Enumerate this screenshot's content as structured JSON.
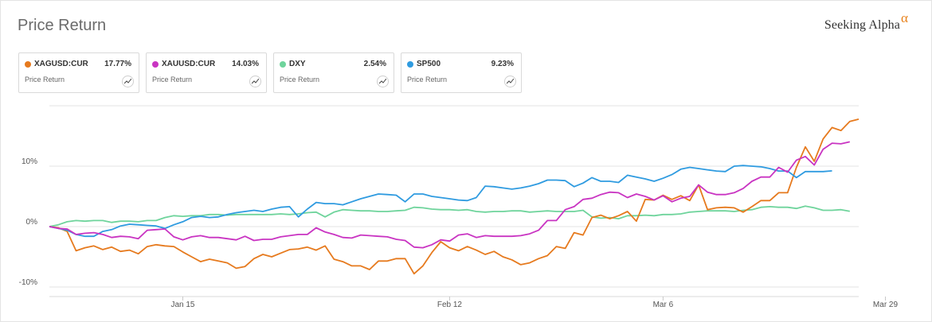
{
  "header": {
    "title": "Price Return"
  },
  "brand": {
    "name": "Seeking Alpha",
    "mark": "α"
  },
  "cards": [
    {
      "symbol": "XAGUSD:CUR",
      "value": "17.77%",
      "metric": "Price Return",
      "color": "#e67a1e",
      "icon": "sparkline-icon"
    },
    {
      "symbol": "XAUUSD:CUR",
      "value": "14.03%",
      "metric": "Price Return",
      "color": "#c934c2",
      "icon": "sparkline-icon"
    },
    {
      "symbol": "DXY",
      "value": "2.54%",
      "metric": "Price Return",
      "color": "#6fd49c",
      "icon": "sparkline-icon"
    },
    {
      "symbol": "SP500",
      "value": "9.23%",
      "metric": "Price Return",
      "color": "#2f9be0",
      "icon": "sparkline-icon"
    }
  ],
  "chart_data": {
    "type": "line",
    "x_tick_labels": [
      "Jan 15",
      "Feb 12",
      "Mar 6",
      "Mar 29"
    ],
    "x_tick_index": [
      15,
      45,
      69,
      94
    ],
    "y_tick_labels": [
      "10%",
      "0%",
      "-10%"
    ],
    "y_tick_values": [
      10,
      0,
      -10
    ],
    "ylim": [
      -11,
      20
    ],
    "grid": true,
    "series": [
      {
        "name": "XAGUSD:CUR",
        "color": "#e67a1e",
        "values": [
          0,
          -0.2,
          -0.8,
          -4,
          -3.5,
          -3.2,
          -3.8,
          -3.4,
          -4.1,
          -3.9,
          -4.5,
          -3.3,
          -3,
          -3.2,
          -3.3,
          -4.2,
          -5,
          -5.8,
          -5.4,
          -5.7,
          -6,
          -6.9,
          -6.6,
          -5.3,
          -4.6,
          -5,
          -4.4,
          -3.8,
          -3.7,
          -3.4,
          -3.9,
          -3.2,
          -5.4,
          -5.8,
          -6.5,
          -6.5,
          -7.1,
          -5.7,
          -5.7,
          -5.3,
          -5.3,
          -7.8,
          -6.5,
          -4.3,
          -2.5,
          -3.5,
          -4,
          -3.3,
          -3.9,
          -4.6,
          -4.1,
          -5,
          -5.5,
          -6.3,
          -6,
          -5.3,
          -4.8,
          -3.3,
          -3.6,
          -1,
          -1.4,
          1.5,
          1.9,
          1.3,
          1.8,
          2.5,
          0.9,
          4.5,
          4.4,
          5.2,
          4.5,
          5.1,
          4.3,
          6.9,
          2.8,
          3.1,
          3.2,
          3.1,
          2.4,
          3.3,
          4.3,
          4.3,
          5.6,
          5.6,
          9.8,
          13.2,
          10.8,
          14.5,
          16.4,
          15.9,
          17.4,
          17.77
        ]
      },
      {
        "name": "XAUUSD:CUR",
        "color": "#c934c2",
        "values": [
          0,
          -0.3,
          -0.4,
          -1.3,
          -1.1,
          -1,
          -1.3,
          -1.8,
          -1.6,
          -1.7,
          -2,
          -0.6,
          -0.5,
          -0.4,
          -1.7,
          -2.2,
          -1.7,
          -1.5,
          -1.8,
          -1.8,
          -2,
          -2.2,
          -1.6,
          -2.3,
          -2.1,
          -2.1,
          -1.7,
          -1.5,
          -1.3,
          -1.3,
          -0.2,
          -0.9,
          -1.3,
          -1.8,
          -1.9,
          -1.4,
          -1.5,
          -1.6,
          -1.7,
          -2.1,
          -2.3,
          -3.4,
          -3.5,
          -3,
          -2.2,
          -2.4,
          -1.4,
          -1.2,
          -1.8,
          -1.5,
          -1.6,
          -1.6,
          -1.6,
          -1.5,
          -1.2,
          -0.6,
          1,
          1,
          2.8,
          3.3,
          4.5,
          4.7,
          5.3,
          5.7,
          5.6,
          4.8,
          5.4,
          5,
          4.4,
          5.1,
          4.1,
          4.7,
          5,
          6.9,
          5.7,
          5.3,
          5.3,
          5.6,
          6.3,
          7.5,
          8.2,
          8.2,
          9.8,
          9,
          11,
          11.6,
          10.2,
          12.8,
          13.8,
          13.7,
          14.03
        ]
      },
      {
        "name": "DXY",
        "color": "#6fd49c",
        "values": [
          0,
          0.3,
          0.8,
          1,
          0.9,
          1,
          1,
          0.7,
          0.9,
          0.9,
          0.8,
          1,
          1,
          1.5,
          1.8,
          1.7,
          1.8,
          1.8,
          2,
          2,
          1.9,
          2,
          2,
          2,
          2,
          2,
          2.1,
          2,
          2.1,
          2.3,
          2.4,
          1.6,
          2.4,
          2.8,
          2.7,
          2.6,
          2.6,
          2.5,
          2.5,
          2.6,
          2.7,
          3.2,
          3.1,
          2.9,
          2.8,
          2.8,
          2.7,
          2.8,
          2.5,
          2.4,
          2.5,
          2.5,
          2.6,
          2.6,
          2.4,
          2.5,
          2.6,
          2.5,
          2.5,
          2.5,
          2.7,
          1.6,
          1.4,
          1.5,
          1.3,
          1.8,
          1.8,
          1.9,
          1.8,
          2,
          2,
          2.1,
          2.4,
          2.5,
          2.6,
          2.6,
          2.6,
          2.5,
          2.7,
          2.8,
          3.2,
          3.3,
          3.2,
          3.2,
          3,
          3.4,
          3.1,
          2.7,
          2.7,
          2.8,
          2.54
        ]
      },
      {
        "name": "SP500",
        "color": "#2f9be0",
        "values": [
          0,
          -0.3,
          -0.6,
          -1.3,
          -1.6,
          -1.6,
          -0.8,
          -0.5,
          0.1,
          0.4,
          0.3,
          0.2,
          0.1,
          -0.3,
          0.3,
          0.8,
          1.5,
          1.7,
          1.5,
          1.6,
          2,
          2.3,
          2.5,
          2.7,
          2.5,
          2.9,
          3.2,
          3.3,
          1.6,
          2.9,
          4,
          3.8,
          3.8,
          3.6,
          4.1,
          4.6,
          5,
          5.4,
          5.3,
          5.2,
          4.1,
          5.4,
          5.4,
          5,
          4.8,
          4.6,
          4.4,
          4.3,
          4.8,
          6.7,
          6.6,
          6.4,
          6.2,
          6.4,
          6.7,
          7.1,
          7.7,
          7.7,
          7.6,
          6.6,
          7.2,
          8.1,
          7.5,
          7.5,
          7.3,
          8.5,
          8.2,
          7.9,
          7.5,
          8,
          8.6,
          9.5,
          9.8,
          9.6,
          9.4,
          9.2,
          9.1,
          10,
          10.1,
          10,
          9.9,
          9.6,
          9.2,
          9.2,
          8.1,
          9.1,
          9.1,
          9.1,
          9.23
        ]
      }
    ]
  }
}
